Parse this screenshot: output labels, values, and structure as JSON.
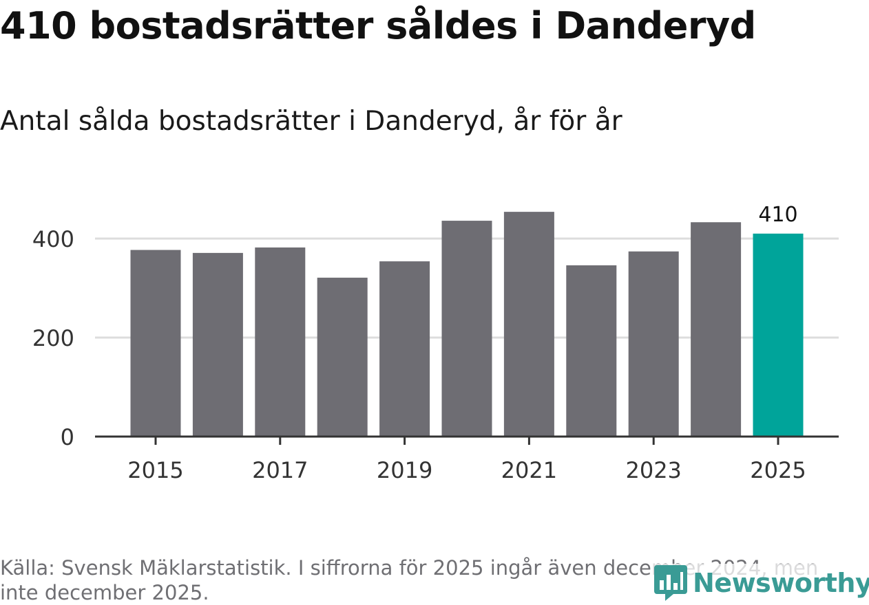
{
  "title": "410 bostadsrätter såldes i Danderyd",
  "subtitle": "Antal sålda bostadsrätter i Danderyd, år för år",
  "source": "Källa: Svensk Mäklarstatistik. I siffrorna för 2025 ingår även december 2024, men inte december 2025.",
  "logo_text": "Newsworthy",
  "colors": {
    "bar": "#6e6d73",
    "highlight": "#00a49a",
    "grid": "#dddddd",
    "axis": "#333333",
    "tick_label": "#333333"
  },
  "chart_data": {
    "type": "bar",
    "title": "410 bostadsrätter såldes i Danderyd",
    "subtitle": "Antal sålda bostadsrätter i Danderyd, år för år",
    "xlabel": "",
    "ylabel": "",
    "categories": [
      "2015",
      "2016",
      "2017",
      "2018",
      "2019",
      "2020",
      "2021",
      "2022",
      "2023",
      "2024",
      "2025"
    ],
    "values": [
      377,
      371,
      382,
      321,
      354,
      436,
      454,
      346,
      374,
      433,
      410
    ],
    "highlight_index": 10,
    "data_labels": [
      {
        "index": 10,
        "text": "410"
      }
    ],
    "x_tick_labels": [
      "2015",
      "2017",
      "2019",
      "2021",
      "2023",
      "2025"
    ],
    "y_ticks": [
      0,
      200,
      400
    ],
    "y_tick_labels": [
      "0",
      "200",
      "400"
    ],
    "ylim": [
      0,
      480
    ],
    "grid": true
  }
}
